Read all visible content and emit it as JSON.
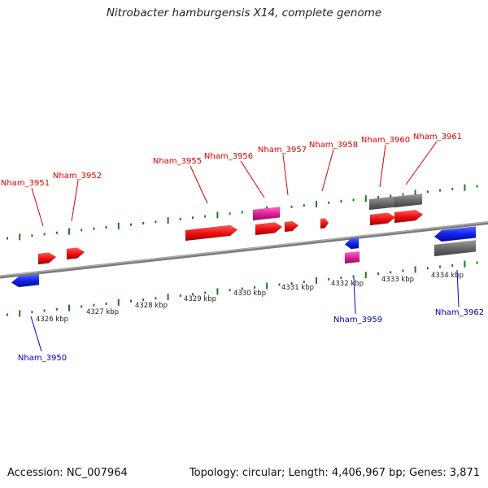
{
  "title": "Nitrobacter hamburgensis X14, complete genome",
  "footer": {
    "accession": "Accession: NC_007964",
    "summary": "Topology: circular; Length: 4,406,967 bp; Genes: 3,871"
  },
  "colors": {
    "forward_label": "#dd0000",
    "reverse_label": "#0000bb",
    "cds_forward": "#ee1111",
    "cds_reverse": "#1122ee",
    "rna": "#e0209a",
    "pseudo": "#6a6a6a",
    "axis": "#808080",
    "tick": "#227722"
  },
  "ticks": [
    {
      "label": "4326 kbp"
    },
    {
      "label": "4327 kbp"
    },
    {
      "label": "4328 kbp"
    },
    {
      "label": "4329 kbp"
    },
    {
      "label": "4330 kbp"
    },
    {
      "label": "4331 kbp"
    },
    {
      "label": "4332 kbp"
    },
    {
      "label": "4333 kbp"
    },
    {
      "label": "4334 kbp"
    }
  ],
  "genes": [
    {
      "name": "Nham_3950",
      "type": "cds_reverse",
      "label_color": "reverse"
    },
    {
      "name": "Nham_3951",
      "type": "cds_forward",
      "label_color": "forward"
    },
    {
      "name": "Nham_3952",
      "type": "cds_forward",
      "label_color": "forward"
    },
    {
      "name": "Nham_3955",
      "type": "cds_forward",
      "label_color": "forward"
    },
    {
      "name": "Nham_3956",
      "type": "rna",
      "label_color": "forward"
    },
    {
      "name": "Nham_3957",
      "type": "cds_forward",
      "label_color": "forward"
    },
    {
      "name": "Nham_3958",
      "type": "cds_forward",
      "label_color": "forward"
    },
    {
      "name": "Nham_3959",
      "type": "rna",
      "label_color": "reverse"
    },
    {
      "name": "Nham_3960",
      "type": "pseudo",
      "label_color": "forward"
    },
    {
      "name": "Nham_3961",
      "type": "pseudo",
      "label_color": "forward"
    },
    {
      "name": "Nham_3962",
      "type": "pseudo",
      "label_color": "reverse"
    }
  ]
}
